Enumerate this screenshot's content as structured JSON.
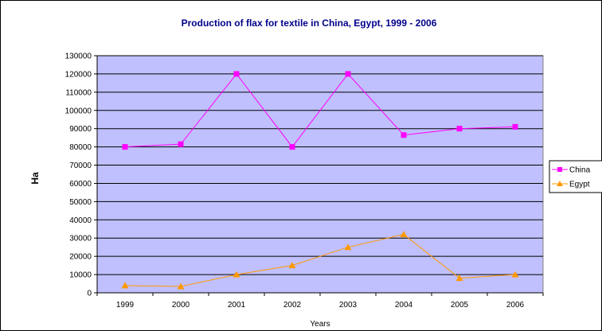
{
  "chart_data": {
    "type": "line",
    "title": "Production of flax for textile in China, Egypt,  1999 - 2006",
    "xlabel": "Years",
    "ylabel": "Ha",
    "categories": [
      "1999",
      "2000",
      "2001",
      "2002",
      "2003",
      "2004",
      "2005",
      "2006"
    ],
    "ylim": [
      0,
      130000
    ],
    "ytick_step": 10000,
    "grid": true,
    "legend_position": "right",
    "plot_background": "#c0c0ff",
    "series": [
      {
        "name": "China",
        "color": "#ff00ff",
        "marker": "square",
        "values": [
          80000,
          81500,
          120000,
          80000,
          120000,
          86500,
          90000,
          91000
        ]
      },
      {
        "name": "Egypt",
        "color": "#ff9900",
        "marker": "triangle",
        "values": [
          4000,
          3500,
          10000,
          15000,
          25000,
          32000,
          8000,
          10000
        ]
      }
    ]
  }
}
